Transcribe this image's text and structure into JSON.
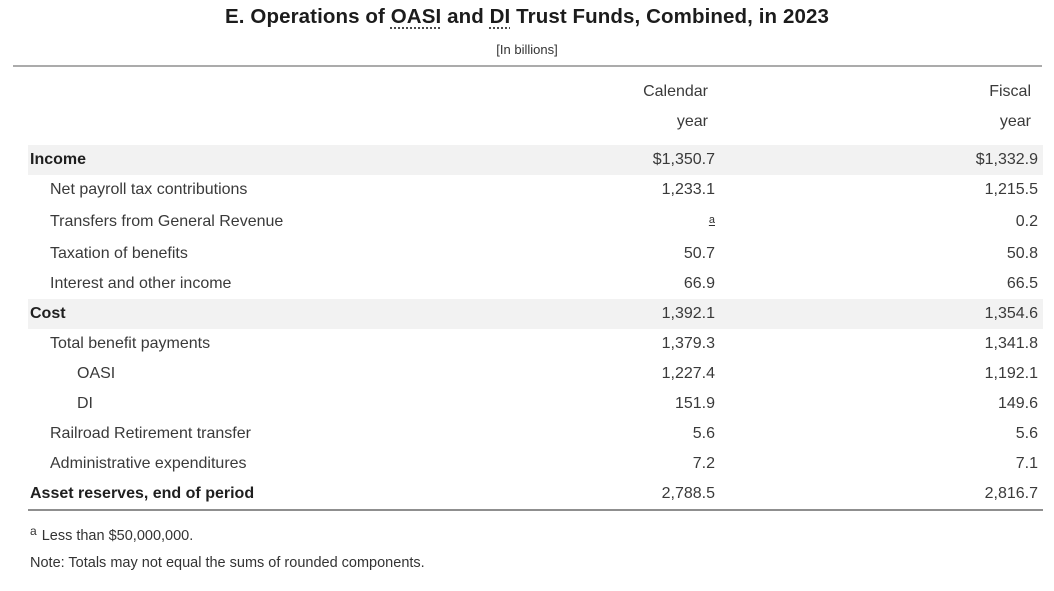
{
  "title": {
    "prefix": "E. Operations of ",
    "abbr1": "OASI",
    "mid": " and ",
    "abbr2": "DI",
    "suffix": " Trust Funds, Combined, in 2023"
  },
  "subtitle": "[In billions]",
  "colors": {
    "row_highlight": "#f2f2f2",
    "rule_gray": "#ababab",
    "text": "#333333"
  },
  "table": {
    "col_headers": [
      {
        "line1": "Calendar",
        "line2": "year"
      },
      {
        "line1": "Fiscal",
        "line2": "year"
      }
    ],
    "rows": [
      {
        "label": "Income",
        "calendar": "$1,350.7",
        "fiscal": "$1,332.9",
        "style": "section",
        "indent": 0
      },
      {
        "label": "Net payroll tax contributions",
        "calendar": "1,233.1",
        "fiscal": "1,215.5",
        "indent": 1
      },
      {
        "label": "Transfers from General Revenue",
        "calendar": "a",
        "calendar_is_footnote": true,
        "fiscal": "0.2",
        "indent": 1
      },
      {
        "label": "Taxation of benefits",
        "calendar": "50.7",
        "fiscal": "50.8",
        "indent": 1
      },
      {
        "label": "Interest and other income",
        "calendar": "66.9",
        "fiscal": "66.5",
        "indent": 1
      },
      {
        "label": "Cost",
        "calendar": "1,392.1",
        "fiscal": "1,354.6",
        "style": "section",
        "indent": 0
      },
      {
        "label": "Total benefit payments",
        "calendar": "1,379.3",
        "fiscal": "1,341.8",
        "indent": 1
      },
      {
        "label": "OASI",
        "calendar": "1,227.4",
        "fiscal": "1,192.1",
        "indent": 2
      },
      {
        "label": "DI",
        "calendar": "151.9",
        "fiscal": "149.6",
        "indent": 2
      },
      {
        "label": "Railroad Retirement transfer",
        "calendar": "5.6",
        "fiscal": "5.6",
        "indent": 1
      },
      {
        "label": "Administrative expenditures",
        "calendar": "7.2",
        "fiscal": "7.1",
        "indent": 1
      },
      {
        "label": "Asset reserves, end of period",
        "calendar": "2,788.5",
        "fiscal": "2,816.7",
        "style": "total",
        "indent": 0
      }
    ]
  },
  "footnotes": {
    "marker": "a",
    "footnote_a": "Less than $50,000,000.",
    "note": "Note: Totals may not equal the sums of rounded components."
  }
}
